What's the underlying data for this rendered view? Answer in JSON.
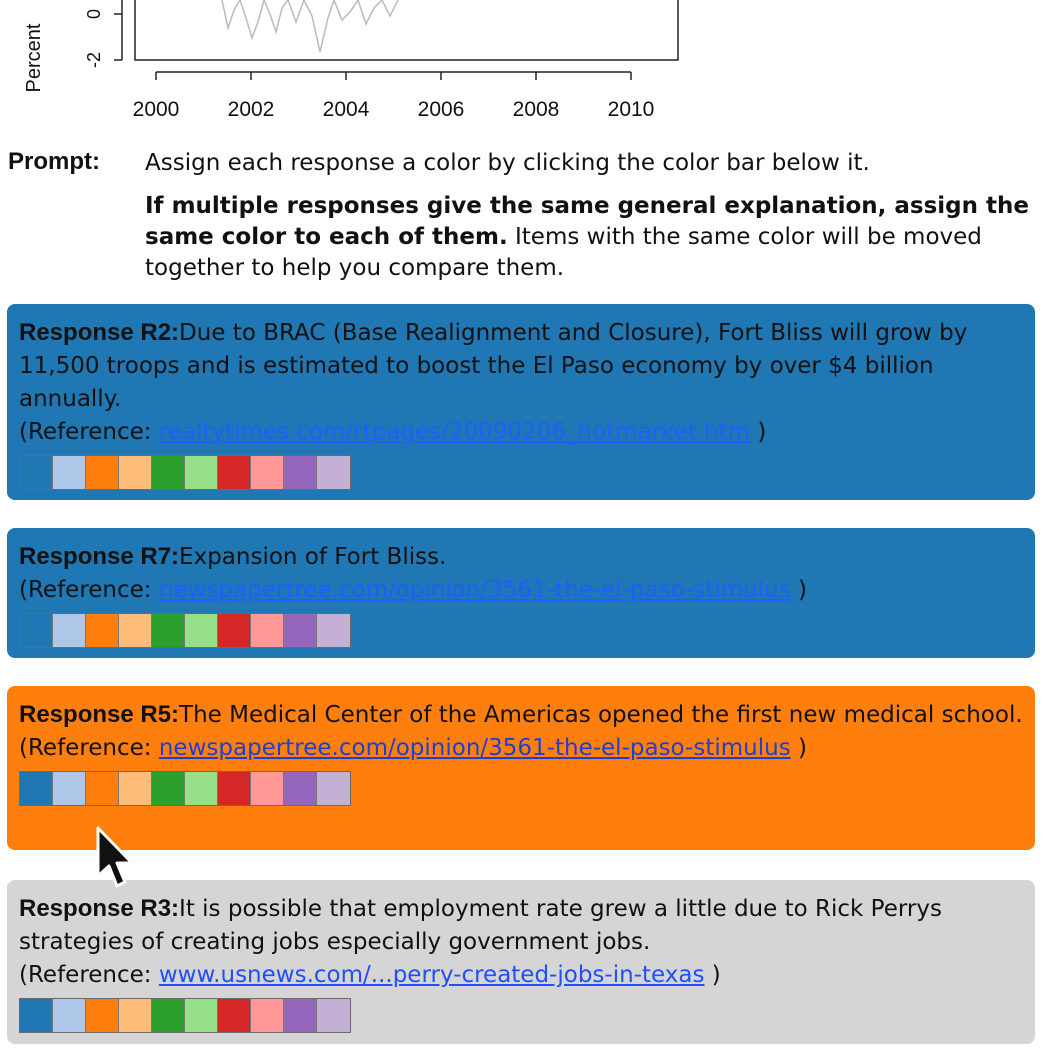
{
  "chart_data": {
    "type": "line",
    "ylabel": "Percent",
    "y_ticks": [
      "0",
      "-2"
    ],
    "x_ticks": [
      "2000",
      "2002",
      "2004",
      "2006",
      "2008",
      "2010"
    ]
  },
  "prompt": {
    "label": "Prompt:",
    "line1": "Assign each response a color by clicking the color bar below it.",
    "bold": "If multiple responses give the same general explanation, assign the same color to each of them.",
    "rest": " Items with the same color will be moved together to help you compare them."
  },
  "palette": [
    "#1f77b4",
    "#aec7e8",
    "#ff7f0e",
    "#ffbb78",
    "#2ca02c",
    "#98df8a",
    "#d62728",
    "#ff9896",
    "#9467bd",
    "#c5b0d5"
  ],
  "responses": [
    {
      "title": "Response R2:",
      "text": "Due to BRAC (Base Realignment and Closure), Fort Bliss will grow by 11,500 troops and is estimated to boost the El Paso economy by over $4 billion annually.",
      "ref_prefix": "(Reference: ",
      "ref_link": "realtytimes.com/rtpages/20090206_hotmarket.htm",
      "ref_suffix": " )",
      "color": "#1f77b4"
    },
    {
      "title": "Response R7:",
      "text": "Expansion of Fort Bliss.",
      "ref_prefix": "(Reference: ",
      "ref_link": "newspapertree.com/opinion/3561-the-el-paso-stimulus",
      "ref_suffix": " )",
      "color": "#1f77b4"
    },
    {
      "title": "Response R5:",
      "text": "The Medical Center of the Americas opened the first new medical school.",
      "ref_prefix": "(Reference: ",
      "ref_link": "newspapertree.com/opinion/3561-the-el-paso-stimulus",
      "ref_suffix": " )",
      "color": "#ff7f0e"
    },
    {
      "title": "Response R3:",
      "text": "It is possible that employment rate grew a little due to Rick Perrys strategies of creating jobs especially government jobs.",
      "ref_prefix": "(Reference: ",
      "ref_link": "www.usnews.com/...perry-created-jobs-in-texas",
      "ref_suffix": " )",
      "color": "#d5d5d5"
    }
  ]
}
